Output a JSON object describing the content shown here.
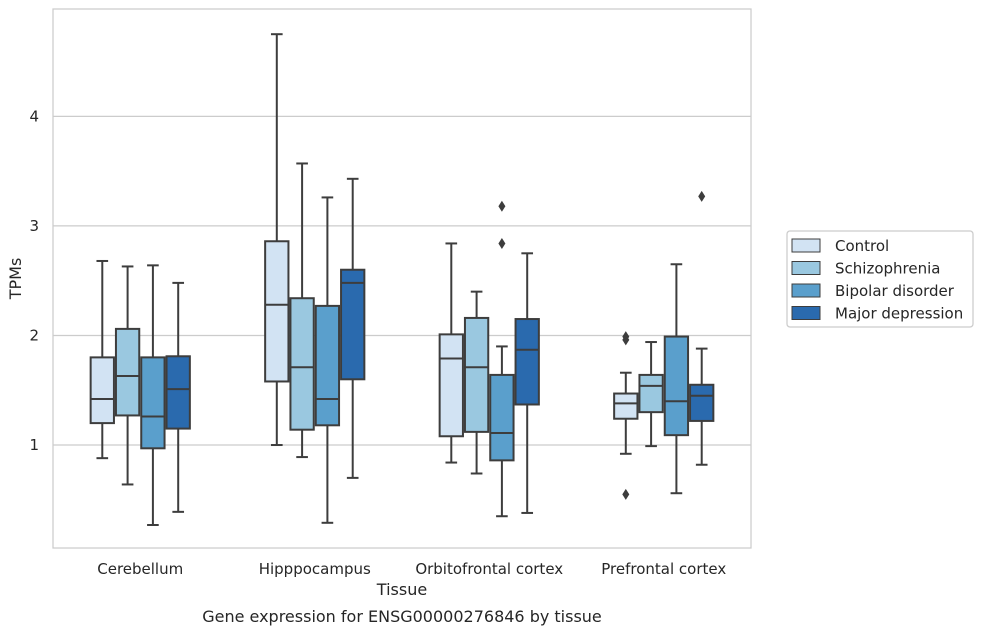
{
  "chart_data": {
    "type": "box",
    "title": "",
    "caption": "Gene expression for ENSG00000276846 by tissue",
    "xlabel": "Tissue",
    "ylabel": "TPMs",
    "ylim": [
      0.06,
      4.98
    ],
    "yticks": [
      1,
      2,
      3,
      4
    ],
    "grid": "horizontal",
    "legend_position": "right",
    "categories": [
      "Cerebellum",
      "Hipppocampus",
      "Orbitofrontal cortex",
      "Prefrontal cortex"
    ],
    "series": [
      {
        "name": "Control",
        "color": "#d2e3f3",
        "boxes": [
          {
            "whislo": 0.88,
            "q1": 1.2,
            "med": 1.42,
            "q3": 1.8,
            "whishi": 2.68,
            "fliers": []
          },
          {
            "whislo": 1.0,
            "q1": 1.58,
            "med": 2.28,
            "q3": 2.86,
            "whishi": 4.75,
            "fliers": []
          },
          {
            "whislo": 0.84,
            "q1": 1.08,
            "med": 1.79,
            "q3": 2.01,
            "whishi": 2.84,
            "fliers": []
          },
          {
            "whislo": 0.92,
            "q1": 1.24,
            "med": 1.38,
            "q3": 1.47,
            "whishi": 1.66,
            "fliers": [
              1.96,
              1.99,
              0.55
            ]
          }
        ]
      },
      {
        "name": "Schizophrenia",
        "color": "#9ac8e0",
        "boxes": [
          {
            "whislo": 0.64,
            "q1": 1.27,
            "med": 1.63,
            "q3": 2.06,
            "whishi": 2.63,
            "fliers": []
          },
          {
            "whislo": 0.89,
            "q1": 1.14,
            "med": 1.71,
            "q3": 2.34,
            "whishi": 3.57,
            "fliers": []
          },
          {
            "whislo": 0.74,
            "q1": 1.12,
            "med": 1.71,
            "q3": 2.16,
            "whishi": 2.4,
            "fliers": []
          },
          {
            "whislo": 0.99,
            "q1": 1.3,
            "med": 1.54,
            "q3": 1.64,
            "whishi": 1.94,
            "fliers": []
          }
        ]
      },
      {
        "name": "Bipolar disorder",
        "color": "#5a9fcc",
        "boxes": [
          {
            "whislo": 0.27,
            "q1": 0.97,
            "med": 1.26,
            "q3": 1.8,
            "whishi": 2.64,
            "fliers": []
          },
          {
            "whislo": 0.29,
            "q1": 1.18,
            "med": 1.42,
            "q3": 2.27,
            "whishi": 3.26,
            "fliers": []
          },
          {
            "whislo": 0.35,
            "q1": 0.86,
            "med": 1.11,
            "q3": 1.64,
            "whishi": 1.9,
            "fliers": [
              2.84,
              3.18
            ]
          },
          {
            "whislo": 0.56,
            "q1": 1.09,
            "med": 1.4,
            "q3": 1.99,
            "whishi": 2.65,
            "fliers": []
          }
        ]
      },
      {
        "name": "Major depression",
        "color": "#2a6aae",
        "boxes": [
          {
            "whislo": 0.39,
            "q1": 1.15,
            "med": 1.51,
            "q3": 1.81,
            "whishi": 2.48,
            "fliers": []
          },
          {
            "whislo": 0.7,
            "q1": 1.6,
            "med": 2.48,
            "q3": 2.6,
            "whishi": 3.43,
            "fliers": []
          },
          {
            "whislo": 0.38,
            "q1": 1.37,
            "med": 1.87,
            "q3": 2.15,
            "whishi": 2.75,
            "fliers": []
          },
          {
            "whislo": 0.82,
            "q1": 1.22,
            "med": 1.45,
            "q3": 1.55,
            "whishi": 1.88,
            "fliers": [
              3.27
            ]
          }
        ]
      }
    ]
  }
}
